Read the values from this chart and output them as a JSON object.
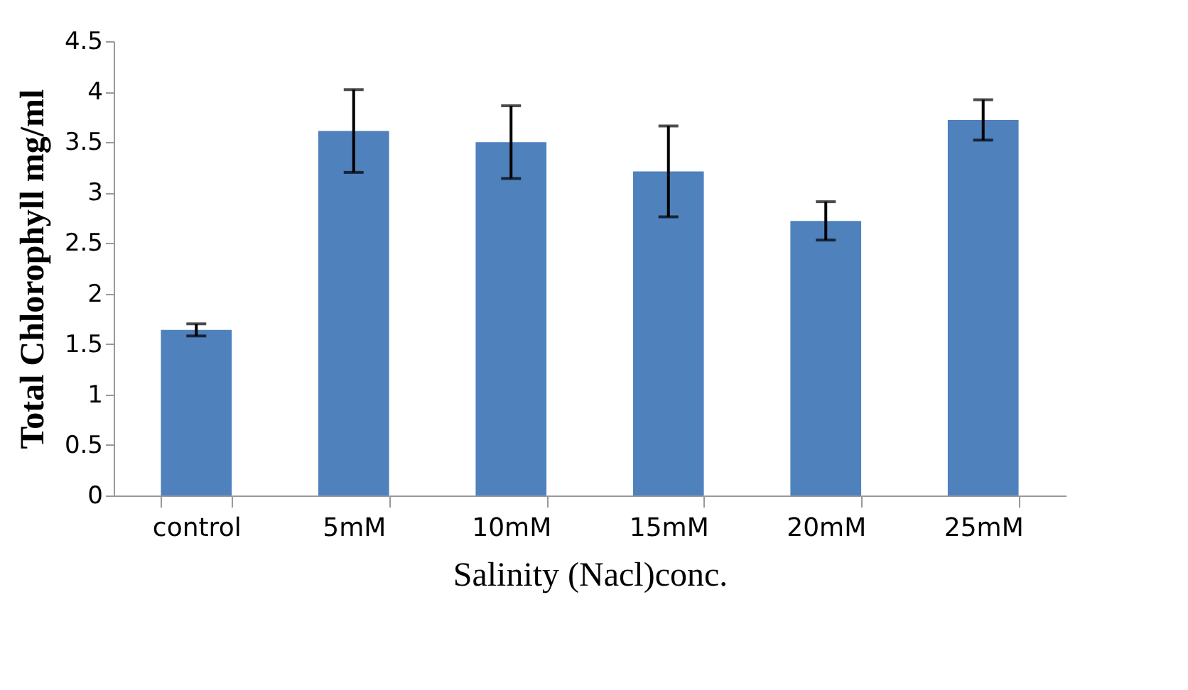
{
  "chart_data": {
    "type": "bar",
    "xlabel": "Salinity (Nacl)conc.",
    "ylabel": "Total Chlorophyll mg/ml",
    "categories": [
      "control",
      "5mM",
      "10mM",
      "15mM",
      "20mM",
      "25mM"
    ],
    "values": [
      1.64,
      3.61,
      3.5,
      3.21,
      2.72,
      3.72
    ],
    "errors": [
      0.06,
      0.41,
      0.36,
      0.45,
      0.19,
      0.2
    ],
    "color": "#4f81bd",
    "ylim": [
      0,
      4.5
    ],
    "yticks": [
      0,
      0.5,
      1,
      1.5,
      2,
      2.5,
      3,
      3.5,
      4,
      4.5
    ],
    "grid": false
  }
}
